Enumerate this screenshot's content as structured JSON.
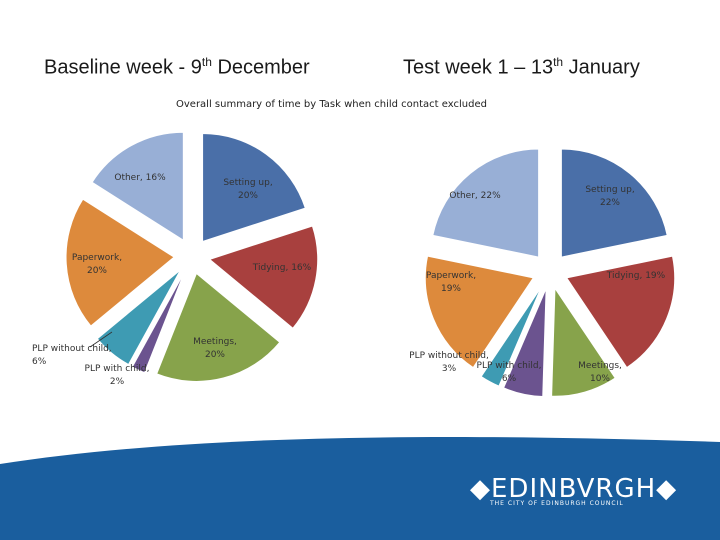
{
  "headings": {
    "left": {
      "prefix": "Baseline week - 9",
      "sup": "th",
      "suffix": " December"
    },
    "right": {
      "prefix": "Test week 1 – 13",
      "sup": "th",
      "suffix": " January"
    }
  },
  "summary_title": "Overall summary of time by Task when child contact excluded",
  "logo": {
    "name": "EDINBVRGH",
    "subtitle": "THE CITY OF EDINBURGH COUNCIL"
  },
  "colors": {
    "setting_up": "#4a6fa8",
    "tidying": "#a8403e",
    "meetings": "#87a34b",
    "plp_with_child": "#6b538f",
    "plp_without_child": "#3e9bb3",
    "paperwork": "#dd8a3c",
    "other": "#98afd6",
    "footer_wave": "#1a5e9e"
  },
  "chart_data": [
    {
      "type": "pie",
      "title": "Baseline week - 9th December",
      "slices": [
        {
          "label": "Setting up, 20%",
          "value": 20,
          "color_key": "setting_up"
        },
        {
          "label": "Tidying, 16%",
          "value": 16,
          "color_key": "tidying"
        },
        {
          "label": "Meetings, 20%",
          "value": 20,
          "color_key": "meetings"
        },
        {
          "label": "PLP with child, 2%",
          "value": 2,
          "color_key": "plp_with_child"
        },
        {
          "label": "PLP without child, 6%",
          "value": 6,
          "color_key": "plp_without_child"
        },
        {
          "label": "Paperwork, 20%",
          "value": 20,
          "color_key": "paperwork"
        },
        {
          "label": "Other, 16%",
          "value": 16,
          "color_key": "other"
        }
      ]
    },
    {
      "type": "pie",
      "title": "Test week 1 – 13th January",
      "slices": [
        {
          "label": "Setting up, 22%",
          "value": 22,
          "color_key": "setting_up"
        },
        {
          "label": "Tidying, 19%",
          "value": 19,
          "color_key": "tidying"
        },
        {
          "label": "Meetings, 10%",
          "value": 10,
          "color_key": "meetings"
        },
        {
          "label": "PLP with child, 6%",
          "value": 6,
          "color_key": "plp_with_child"
        },
        {
          "label": "PLP without child, 3%",
          "value": 3,
          "color_key": "plp_without_child"
        },
        {
          "label": "Paperwork, 19%",
          "value": 19,
          "color_key": "paperwork"
        },
        {
          "label": "Other, 22%",
          "value": 22,
          "color_key": "other"
        }
      ]
    }
  ]
}
